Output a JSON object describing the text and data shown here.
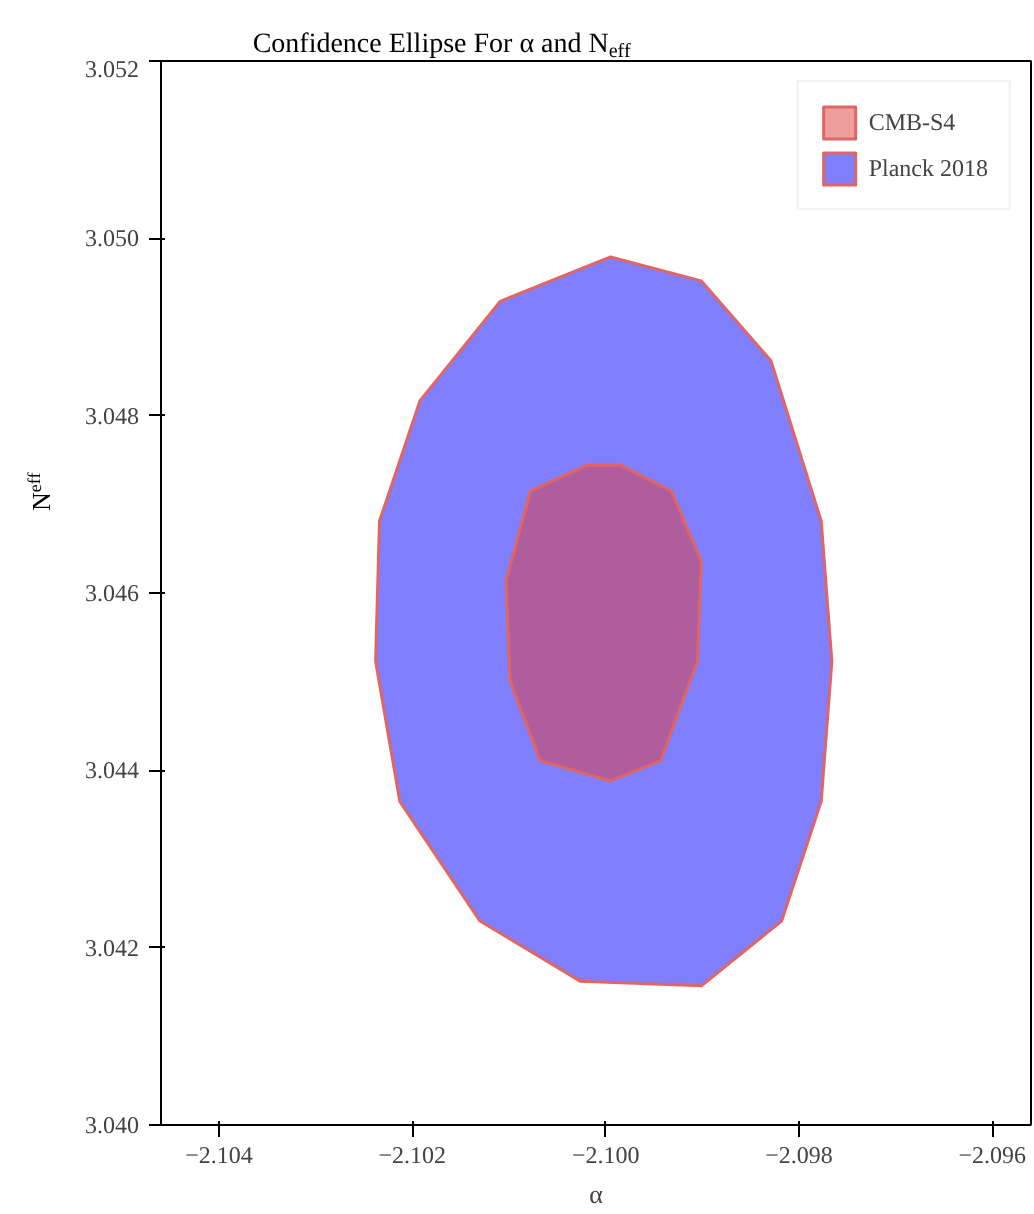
{
  "chart_data": {
    "type": "area",
    "title": "Confidence Ellipse For α and N$_{eff}$",
    "xlabel": "α",
    "ylabel": "N$_{eff}$",
    "xlim": [
      -2.1046,
      -2.0956
    ],
    "ylim": [
      3.04,
      3.052
    ],
    "xticks": [
      {
        "value": -2.104,
        "label": "−2.104"
      },
      {
        "value": -2.102,
        "label": "−2.102"
      },
      {
        "value": -2.1,
        "label": "−2.100"
      },
      {
        "value": -2.098,
        "label": "−2.098"
      },
      {
        "value": -2.096,
        "label": "−2.096"
      }
    ],
    "yticks": [
      {
        "value": 3.04,
        "label": "3.040"
      },
      {
        "value": 3.042,
        "label": "3.042"
      },
      {
        "value": 3.044,
        "label": "3.044"
      },
      {
        "value": 3.046,
        "label": "3.046"
      },
      {
        "value": 3.048,
        "label": "3.048"
      },
      {
        "value": 3.05,
        "label": "3.050"
      },
      {
        "value": 3.052,
        "label": "3.052"
      }
    ],
    "grid": false,
    "legend": "top right",
    "series": [
      {
        "name": "CMB-S4",
        "color": "#e03c3c",
        "x": [
          -2.1002,
          -2.10078,
          -2.10103,
          -2.10099,
          -2.10068,
          -2.09995,
          -2.09943,
          -2.09905,
          -2.09901,
          -2.09932,
          -2.09984
        ],
        "values": [
          3.04744,
          3.04715,
          3.04614,
          3.04501,
          3.04411,
          3.04388,
          3.04411,
          3.04523,
          3.04636,
          3.04715,
          3.04744
        ]
      },
      {
        "name": "Planck 2018",
        "color": "#0000ff",
        "x": [
          -2.09995,
          -2.10109,
          -2.10192,
          -2.10234,
          -2.10238,
          -2.10213,
          -2.1013,
          -2.10026,
          -2.09901,
          -2.09818,
          -2.09777,
          -2.09766,
          -2.09777,
          -2.09829,
          -2.09901
        ],
        "values": [
          3.04979,
          3.04929,
          3.04817,
          3.04681,
          3.04523,
          3.04365,
          3.0423,
          3.04162,
          3.04157,
          3.0423,
          3.04365,
          3.04523,
          3.04681,
          3.04862,
          3.04952
        ]
      }
    ]
  }
}
